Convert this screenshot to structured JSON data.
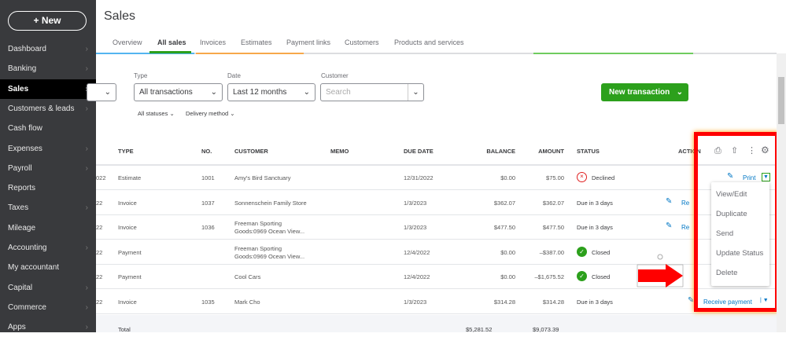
{
  "sidebar": {
    "new_label": "+ New",
    "items": [
      {
        "label": "Dashboard",
        "chevron": true
      },
      {
        "label": "Banking",
        "chevron": true
      },
      {
        "label": "Sales",
        "chevron": true,
        "active": true
      },
      {
        "label": "Customers & leads",
        "chevron": true
      },
      {
        "label": "Cash flow",
        "chevron": false
      },
      {
        "label": "Expenses",
        "chevron": true
      },
      {
        "label": "Payroll",
        "chevron": true
      },
      {
        "label": "Reports",
        "chevron": false
      },
      {
        "label": "Taxes",
        "chevron": true
      },
      {
        "label": "Mileage",
        "chevron": false
      },
      {
        "label": "Accounting",
        "chevron": true
      },
      {
        "label": "My accountant",
        "chevron": false
      },
      {
        "label": "Capital",
        "chevron": true
      },
      {
        "label": "Commerce",
        "chevron": true
      },
      {
        "label": "Apps",
        "chevron": true
      }
    ]
  },
  "page": {
    "title": "Sales"
  },
  "tabs": [
    "Overview",
    "All sales",
    "Invoices",
    "Estimates",
    "Payment links",
    "Customers",
    "Products and services"
  ],
  "filters": {
    "type_label": "Type",
    "type_value": "All transactions",
    "date_label": "Date",
    "date_value": "Last 12 months",
    "customer_label": "Customer",
    "customer_placeholder": "Search",
    "statuses": "All statuses",
    "delivery": "Delivery method",
    "new_transaction": "New transaction"
  },
  "table": {
    "headers": [
      "TYPE",
      "NO.",
      "CUSTOMER",
      "MEMO",
      "DUE DATE",
      "BALANCE",
      "AMOUNT",
      "STATUS",
      "ACTION"
    ],
    "rows": [
      {
        "date": "022",
        "type": "Estimate",
        "no": "1001",
        "customer": "Amy's Bird Sanctuary",
        "customer2": "",
        "due": "12/31/2022",
        "balance": "$0.00",
        "amount": "$75.00",
        "status": "Declined",
        "action": "Print"
      },
      {
        "date": "22",
        "type": "Invoice",
        "no": "1037",
        "customer": "Sonnenschein Family Store",
        "customer2": "",
        "due": "1/3/2023",
        "balance": "$362.07",
        "amount": "$362.07",
        "status": "Due in 3 days",
        "action": "Re"
      },
      {
        "date": "22",
        "type": "Invoice",
        "no": "1036",
        "customer": "Freeman Sporting",
        "customer2": "Goods:0969 Ocean View...",
        "due": "1/3/2023",
        "balance": "$477.50",
        "amount": "$477.50",
        "status": "Due in 3 days",
        "action": "Re"
      },
      {
        "date": "22",
        "type": "Payment",
        "no": "",
        "customer": "Freeman Sporting",
        "customer2": "Goods:0969 Ocean View...",
        "due": "12/4/2022",
        "balance": "$0.00",
        "amount": "–$387.00",
        "status": "Closed",
        "action": ""
      },
      {
        "date": "22",
        "type": "Payment",
        "no": "",
        "customer": "Cool Cars",
        "customer2": "",
        "due": "12/4/2022",
        "balance": "$0.00",
        "amount": "–$1,675.52",
        "status": "Closed",
        "action": ""
      },
      {
        "date": "22",
        "type": "Invoice",
        "no": "1035",
        "customer": "Mark Cho",
        "customer2": "",
        "due": "1/3/2023",
        "balance": "$314.28",
        "amount": "$314.28",
        "status": "Due in 3 days",
        "action": "Receive payment"
      }
    ],
    "total_label": "Total",
    "total_balance": "$5,281.52",
    "total_amount": "$9,073.39"
  },
  "menu": [
    "View/Edit",
    "Duplicate",
    "Send",
    "Update Status",
    "Delete"
  ],
  "colors": {
    "accent": "#2ca01c",
    "link": "#0077c5",
    "annotation": "#ff0000",
    "declined": "#e02020"
  }
}
